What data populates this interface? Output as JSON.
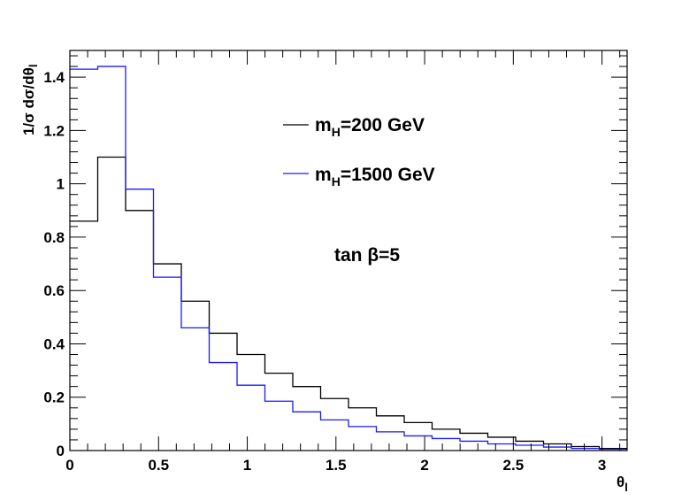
{
  "chart_data": {
    "type": "line",
    "step": true,
    "title": "",
    "xlabel": "θ",
    "xlabel_sub": "l",
    "ylabel": "1/σ dσ/dθ",
    "ylabel_sub": "l",
    "xlim": [
      0,
      3.1416
    ],
    "ylim": [
      0,
      1.5
    ],
    "xticks": [
      0,
      0.5,
      1,
      1.5,
      2,
      2.5,
      3
    ],
    "xtick_labels": [
      "0",
      "0.5",
      "1",
      "1.5",
      "2",
      "2.5",
      "3"
    ],
    "yticks": [
      0,
      0.2,
      0.4,
      0.6,
      0.8,
      1.0,
      1.2,
      1.4
    ],
    "ytick_labels": [
      "0",
      "0.2",
      "0.4",
      "0.6",
      "0.8",
      "1",
      "1.2",
      "1.4"
    ],
    "bin_edges": [
      0,
      0.15708,
      0.31416,
      0.47124,
      0.62832,
      0.7854,
      0.94248,
      1.09956,
      1.25664,
      1.41372,
      1.5708,
      1.72788,
      1.88496,
      2.04204,
      2.19912,
      2.3562,
      2.51328,
      2.67036,
      2.82744,
      2.98452,
      3.1416
    ],
    "series": [
      {
        "name": "m_H=200 GeV",
        "label_main": "m",
        "label_sub": "H",
        "label_rest": "=200 GeV",
        "color": "#000000",
        "values": [
          0.86,
          1.1,
          0.9,
          0.7,
          0.56,
          0.44,
          0.36,
          0.29,
          0.24,
          0.195,
          0.16,
          0.13,
          0.105,
          0.08,
          0.065,
          0.05,
          0.035,
          0.025,
          0.015,
          0.008
        ]
      },
      {
        "name": "m_H=1500 GeV",
        "label_main": "m",
        "label_sub": "H",
        "label_rest": "=1500 GeV",
        "color": "#1a1aff",
        "values": [
          1.43,
          1.44,
          0.98,
          0.65,
          0.46,
          0.33,
          0.245,
          0.185,
          0.145,
          0.115,
          0.09,
          0.07,
          0.055,
          0.045,
          0.035,
          0.025,
          0.02,
          0.013,
          0.008,
          0.005
        ]
      }
    ],
    "annotation": "tan β=5",
    "legend_position": "top-center"
  }
}
